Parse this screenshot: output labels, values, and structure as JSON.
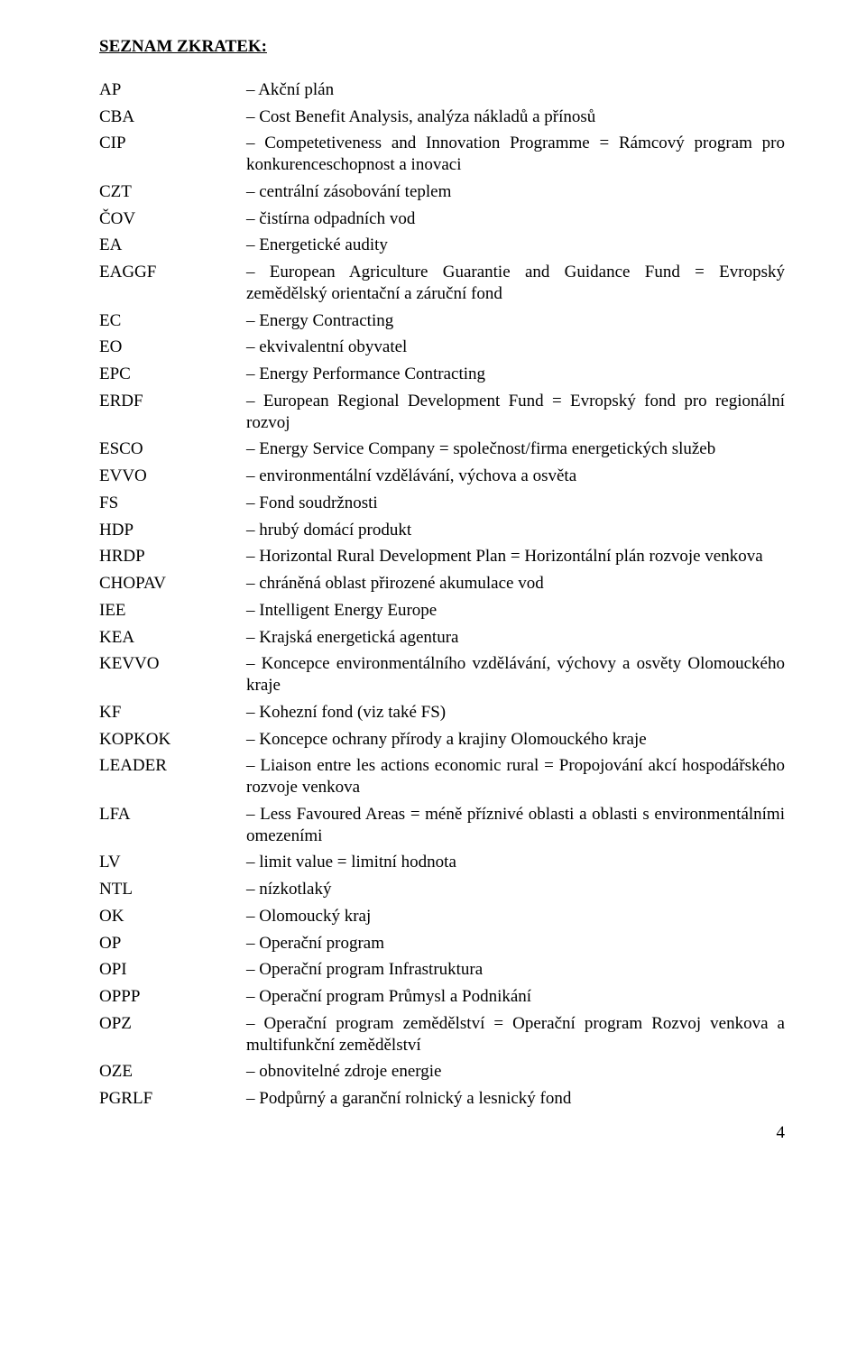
{
  "title": "SEZNAM ZKRATEK:",
  "page_number": "4",
  "entries": [
    {
      "abbr": "AP",
      "def": "– Akční plán",
      "justify": false
    },
    {
      "abbr": "CBA",
      "def": "– Cost Benefit Analysis, analýza nákladů a přínosů",
      "justify": false
    },
    {
      "abbr": "CIP",
      "def": "– Competetiveness and Innovation Programme = Rámcový program pro konkurenceschopnost a inovaci",
      "justify": true
    },
    {
      "abbr": "CZT",
      "def": "– centrální zásobování teplem",
      "justify": false
    },
    {
      "abbr": "ČOV",
      "def": "– čistírna odpadních vod",
      "justify": false
    },
    {
      "abbr": "EA",
      "def": "– Energetické audity",
      "justify": false
    },
    {
      "abbr": "EAGGF",
      "def": "– European Agriculture Guarantie and Guidance Fund = Evropský zemědělský orientační a záruční fond",
      "justify": true
    },
    {
      "abbr": "EC",
      "def": "– Energy Contracting",
      "justify": false
    },
    {
      "abbr": "EO",
      "def": "– ekvivalentní obyvatel",
      "justify": false
    },
    {
      "abbr": "EPC",
      "def": "– Energy Performance Contracting",
      "justify": false
    },
    {
      "abbr": "ERDF",
      "def": "– European Regional Development Fund = Evropský fond pro regionální rozvoj",
      "justify": true
    },
    {
      "abbr": "ESCO",
      "def": "– Energy Service Company = společnost/firma energetických služeb",
      "justify": false
    },
    {
      "abbr": "EVVO",
      "def": "– environmentální vzdělávání, výchova a osvěta",
      "justify": false
    },
    {
      "abbr": "FS",
      "def": "– Fond soudržnosti",
      "justify": false
    },
    {
      "abbr": "HDP",
      "def": "– hrubý domácí produkt",
      "justify": false
    },
    {
      "abbr": "HRDP",
      "def": "– Horizontal Rural Development Plan = Horizontální plán rozvoje venkova",
      "justify": false
    },
    {
      "abbr": "CHOPAV",
      "def": "– chráněná oblast přirozené akumulace vod",
      "justify": false
    },
    {
      "abbr": "IEE",
      "def": "– Intelligent Energy Europe",
      "justify": false
    },
    {
      "abbr": "KEA",
      "def": "– Krajská energetická agentura",
      "justify": false
    },
    {
      "abbr": "KEVVO",
      "def": "– Koncepce environmentálního vzdělávání, výchovy a osvěty Olomouckého kraje",
      "justify": true
    },
    {
      "abbr": "KF",
      "def": "– Kohezní fond (viz také FS)",
      "justify": false
    },
    {
      "abbr": "KOPKOK",
      "def": "– Koncepce ochrany přírody a krajiny Olomouckého kraje",
      "justify": false
    },
    {
      "abbr": "LEADER",
      "def": "– Liaison entre les actions economic rural = Propojování akcí hospodářského rozvoje venkova",
      "justify": true
    },
    {
      "abbr": "LFA",
      "def": "– Less Favoured Areas = méně příznivé oblasti a oblasti s environmentálními omezeními",
      "justify": true
    },
    {
      "abbr": "LV",
      "def": "– limit value = limitní hodnota",
      "justify": false
    },
    {
      "abbr": "NTL",
      "def": "– nízkotlaký",
      "justify": false
    },
    {
      "abbr": "OK",
      "def": "– Olomoucký kraj",
      "justify": false
    },
    {
      "abbr": "OP",
      "def": "– Operační program",
      "justify": false
    },
    {
      "abbr": "OPI",
      "def": "– Operační program Infrastruktura",
      "justify": false
    },
    {
      "abbr": "OPPP",
      "def": "– Operační program Průmysl a Podnikání",
      "justify": false
    },
    {
      "abbr": "OPZ",
      "def": "– Operační program zemědělství = Operační program Rozvoj venkova a multifunkční zemědělství",
      "justify": true
    },
    {
      "abbr": "OZE",
      "def": "– obnovitelné zdroje energie",
      "justify": false
    },
    {
      "abbr": "PGRLF",
      "def": "– Podpůrný a garanční rolnický a lesnický fond",
      "justify": false
    }
  ]
}
